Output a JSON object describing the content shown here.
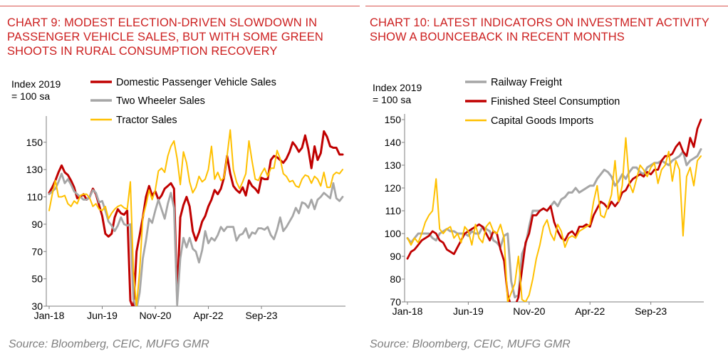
{
  "chart_data": [
    {
      "type": "line",
      "title": "CHART 9: MODEST ELECTION-DRIVEN SLOWDOWN IN PASSENGER VEHICLE SALES, BUT WITH SOME GREEN SHOOTS IN RURAL CONSUMPTION RECOVERY",
      "ylabel": "Index 2019\n= 100 sa",
      "ylim": [
        30,
        165
      ],
      "y_ticks": [
        30,
        50,
        70,
        90,
        110,
        130,
        150
      ],
      "x_start": "2018-01",
      "x_ticks": [
        "Jan-18",
        "Jun-19",
        "Nov-20",
        "Apr-22",
        "Sep-23"
      ],
      "grid": false,
      "legend": "top",
      "source": "Source: Bloomberg, CEIC, MUFG GMR",
      "series": [
        {
          "name": "Domestic Passenger Vehicle Sales",
          "color": "#c00000",
          "values": [
            113,
            117,
            122,
            128,
            133,
            128,
            126,
            122,
            117,
            109,
            110,
            112,
            108,
            110,
            116,
            112,
            104,
            96,
            83,
            81,
            83,
            95,
            101,
            98,
            97,
            100,
            34,
            27,
            70,
            82,
            95,
            110,
            118,
            111,
            114,
            108,
            111,
            116,
            118,
            120,
            116,
            36,
            95,
            104,
            110,
            103,
            85,
            78,
            84,
            92,
            96,
            103,
            108,
            115,
            112,
            116,
            124,
            140,
            127,
            118,
            115,
            113,
            117,
            111,
            122,
            118,
            116,
            113,
            124,
            123,
            123,
            137,
            140,
            139,
            137,
            135,
            138,
            143,
            150,
            147,
            143,
            146,
            155,
            145,
            131,
            147,
            137,
            142,
            158,
            154,
            147,
            146,
            146,
            141,
            141
          ]
        },
        {
          "name": "Two Wheeler Sales",
          "color": "#a6a6a6",
          "values": [
            112,
            114,
            116,
            121,
            127,
            120,
            123,
            119,
            114,
            112,
            110,
            108,
            108,
            110,
            115,
            113,
            106,
            107,
            100,
            92,
            89,
            85,
            89,
            95,
            90,
            89,
            90,
            35,
            28,
            40,
            65,
            78,
            94,
            91,
            100,
            108,
            101,
            94,
            105,
            113,
            102,
            31,
            65,
            80,
            73,
            80,
            72,
            70,
            62,
            71,
            85,
            76,
            80,
            78,
            82,
            88,
            85,
            88,
            88,
            88,
            78,
            82,
            83,
            87,
            80,
            84,
            83,
            87,
            87,
            86,
            88,
            82,
            79,
            86,
            95,
            85,
            88,
            92,
            96,
            102,
            98,
            106,
            105,
            102,
            108,
            101,
            108,
            110,
            113,
            111,
            109,
            120,
            109,
            107,
            110
          ]
        },
        {
          "name": "Tractor Sales",
          "color": "#ffc000",
          "values": [
            100,
            112,
            122,
            110,
            110,
            111,
            105,
            103,
            107,
            105,
            111,
            112,
            112,
            109,
            103,
            105,
            101,
            100,
            103,
            94,
            98,
            101,
            103,
            104,
            102,
            101,
            121,
            55,
            30,
            56,
            95,
            104,
            115,
            108,
            115,
            129,
            131,
            128,
            140,
            147,
            151,
            138,
            119,
            143,
            135,
            121,
            113,
            117,
            125,
            121,
            123,
            130,
            147,
            123,
            128,
            122,
            124,
            140,
            159,
            130,
            121,
            116,
            121,
            127,
            151,
            136,
            123,
            122,
            127,
            131,
            125,
            131,
            131,
            144,
            138,
            127,
            125,
            121,
            122,
            118,
            117,
            123,
            126,
            125,
            120,
            125,
            123,
            118,
            128,
            117,
            117,
            126,
            128,
            127,
            130
          ]
        }
      ]
    },
    {
      "type": "line",
      "title": "CHART 10: LATEST INDICATORS ON INVESTMENT ACTIVITY SHOW A BOUNCEBACK IN RECENT MONTHS",
      "ylabel": "Index 2019\n= 100 sa",
      "ylim": [
        70,
        150
      ],
      "y_ticks": [
        70,
        80,
        90,
        100,
        110,
        120,
        130,
        140,
        150
      ],
      "x_start": "2018-01",
      "x_ticks": [
        "Jan-18",
        "Jun-19",
        "Nov-20",
        "Apr-22",
        "Sep-23"
      ],
      "grid": false,
      "legend": "top",
      "source": "Source: Bloomberg, CEIC, MUFG GMR",
      "series": [
        {
          "name": "Railway Freight",
          "color": "#a6a6a6",
          "values": [
            98,
            96,
            98,
            100,
            100,
            100,
            100,
            98,
            97,
            100,
            101,
            102,
            101,
            101,
            100,
            100,
            100,
            99,
            101,
            100,
            100,
            103,
            102,
            101,
            97,
            96,
            94,
            99,
            100,
            79,
            72,
            73,
            91,
            95,
            103,
            110,
            110,
            110,
            111,
            110,
            112,
            114,
            112,
            115,
            116,
            118,
            118,
            120,
            118,
            119,
            120,
            121,
            121,
            124,
            126,
            128,
            127,
            125,
            121,
            123,
            126,
            124,
            127,
            129,
            129,
            127,
            126,
            129,
            130,
            131,
            131,
            132,
            131,
            130,
            132,
            133,
            134,
            136,
            130,
            132,
            133,
            134,
            137
          ]
        },
        {
          "name": "Finished Steel Consumption",
          "color": "#c00000",
          "values": [
            89,
            92,
            93,
            95,
            97,
            98,
            99,
            101,
            100,
            97,
            96,
            93,
            92,
            91,
            94,
            97,
            100,
            101,
            102,
            103,
            104,
            103,
            100,
            97,
            101,
            100,
            93,
            88,
            73,
            55,
            60,
            72,
            84,
            96,
            100,
            108,
            108,
            110,
            111,
            110,
            112,
            105,
            101,
            98,
            97,
            100,
            101,
            99,
            103,
            103,
            104,
            103,
            108,
            111,
            114,
            113,
            111,
            114,
            112,
            114,
            118,
            119,
            122,
            124,
            125,
            126,
            125,
            127,
            126,
            128,
            128,
            132,
            134,
            134,
            135,
            138,
            140,
            136,
            134,
            142,
            138,
            146,
            150
          ]
        },
        {
          "name": "Capital Goods Imports",
          "color": "#ffc000",
          "values": [
            98,
            95,
            98,
            96,
            100,
            105,
            108,
            110,
            124,
            102,
            100,
            102,
            103,
            98,
            100,
            96,
            103,
            101,
            95,
            104,
            98,
            96,
            103,
            105,
            101,
            100,
            104,
            98,
            70,
            74,
            78,
            90,
            71,
            70,
            73,
            80,
            89,
            95,
            103,
            106,
            100,
            97,
            104,
            101,
            94,
            98,
            99,
            98,
            101,
            102,
            103,
            104,
            114,
            121,
            108,
            107,
            112,
            117,
            132,
            114,
            121,
            142,
            122,
            118,
            124,
            130,
            128,
            125,
            129,
            131,
            122,
            128,
            130,
            136,
            123,
            132,
            128,
            99,
            125,
            129,
            121,
            132,
            134
          ]
        }
      ]
    }
  ]
}
